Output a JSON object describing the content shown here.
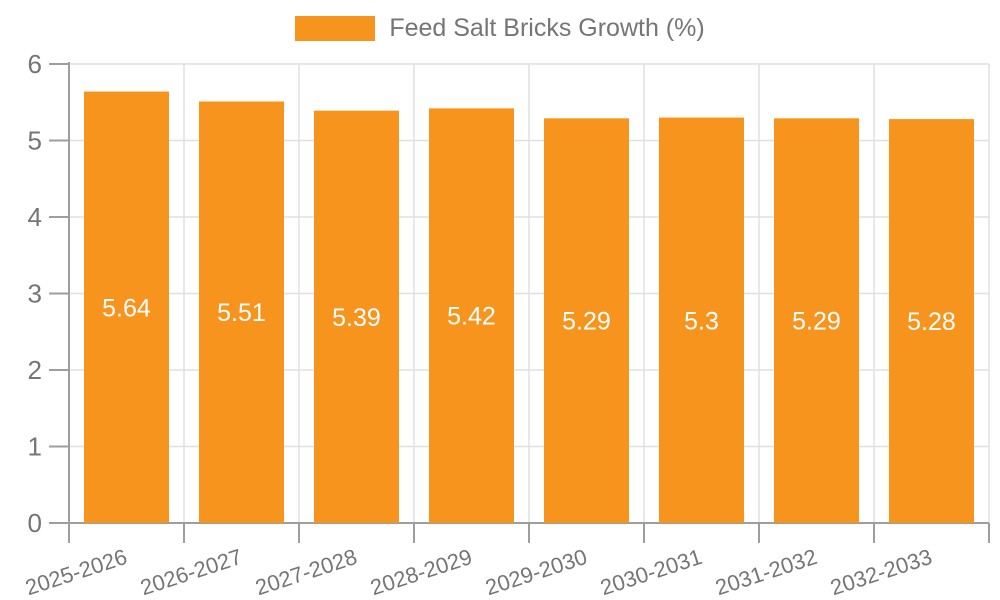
{
  "chart_data": {
    "type": "bar",
    "title": "Feed Salt Bricks Growth (%)",
    "legend": [
      "Feed Salt Bricks Growth (%)"
    ],
    "legend_position": "top-center",
    "categories": [
      "2025-2026",
      "2026-2027",
      "2027-2028",
      "2028-2029",
      "2029-2030",
      "2030-2031",
      "2031-2032",
      "2032-2033"
    ],
    "series": [
      {
        "name": "Feed Salt Bricks Growth (%)",
        "values": [
          5.64,
          5.51,
          5.39,
          5.42,
          5.29,
          5.3,
          5.29,
          5.28
        ]
      }
    ],
    "value_labels": [
      "5.64",
      "5.51",
      "5.39",
      "5.42",
      "5.29",
      "5.3",
      "5.29",
      "5.28"
    ],
    "xlabel": "",
    "ylabel": "",
    "ylim": [
      0,
      6
    ],
    "yticks": [
      0,
      1,
      2,
      3,
      4,
      5,
      6
    ],
    "grid": true,
    "x_label_rotation_deg": -18,
    "colors": {
      "bar": "#F7941E",
      "value_label": "#FFFFFF",
      "axis_label": "#757575",
      "grid_line": "#E0E0E0",
      "axis_line": "#9E9E9E",
      "background": "#FFFFFF"
    }
  }
}
